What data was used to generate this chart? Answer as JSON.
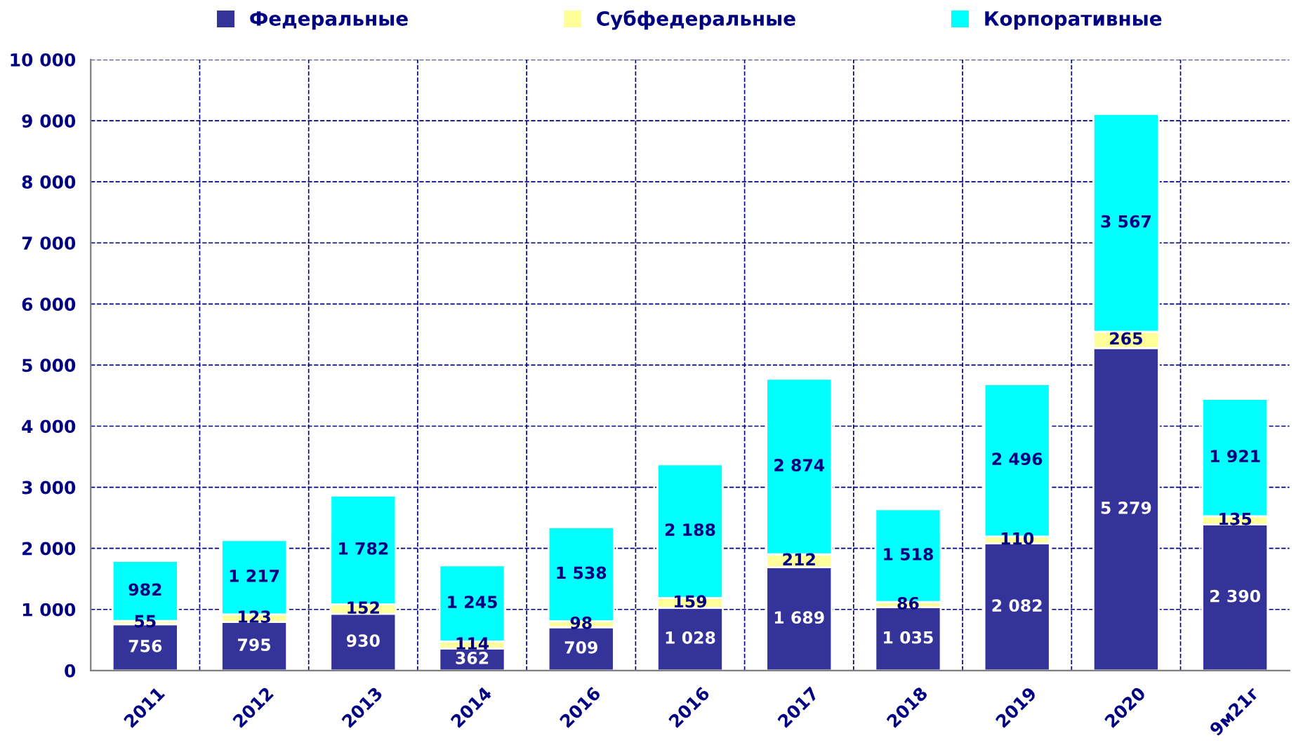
{
  "chart_data": {
    "type": "bar",
    "stacked": true,
    "categories": [
      "2011",
      "2012",
      "2013",
      "2014",
      "2016",
      "2016",
      "2017",
      "2018",
      "2019",
      "2020",
      "9м21г"
    ],
    "series": [
      {
        "name": "Федеральные",
        "color": "#333399",
        "values": [
          756,
          795,
          930,
          362,
          709,
          1028,
          1689,
          1035,
          2082,
          5279,
          2390
        ],
        "value_labels": [
          "756",
          "795",
          "930",
          "362",
          "709",
          "1 028",
          "1 689",
          "1 035",
          "2 082",
          "5 279",
          "2 390"
        ]
      },
      {
        "name": "Субфедеральные",
        "color": "#ffff99",
        "values": [
          55,
          123,
          152,
          114,
          98,
          159,
          212,
          86,
          110,
          265,
          135
        ],
        "value_labels": [
          "55",
          "123",
          "152",
          "114",
          "98",
          "159",
          "212",
          "86",
          "110",
          "265",
          "135"
        ]
      },
      {
        "name": "Корпоративные",
        "color": "#00ffff",
        "values": [
          982,
          1217,
          1782,
          1245,
          1538,
          2188,
          2874,
          1518,
          2496,
          3567,
          1921
        ],
        "value_labels": [
          "982",
          "1 217",
          "1 782",
          "1 245",
          "1 538",
          "2 188",
          "2 874",
          "1 518",
          "2 496",
          "3 567",
          "1 921"
        ]
      }
    ],
    "ylim": [
      0,
      10000
    ],
    "yticks": [
      0,
      {
        "value": 1000,
        "label": "1 000"
      },
      {
        "value": 2000,
        "label": "2 000"
      },
      {
        "value": 3000,
        "label": "3 000"
      },
      {
        "value": 4000,
        "label": "4 000"
      },
      {
        "value": 5000,
        "label": "5 000"
      },
      {
        "value": 6000,
        "label": "6 000"
      },
      {
        "value": 7000,
        "label": "7 000"
      },
      {
        "value": 8000,
        "label": "8 000"
      },
      {
        "value": 9000,
        "label": "9 000"
      },
      {
        "value": 10000,
        "label": "10 000"
      }
    ],
    "grid": true,
    "legend": "top"
  }
}
